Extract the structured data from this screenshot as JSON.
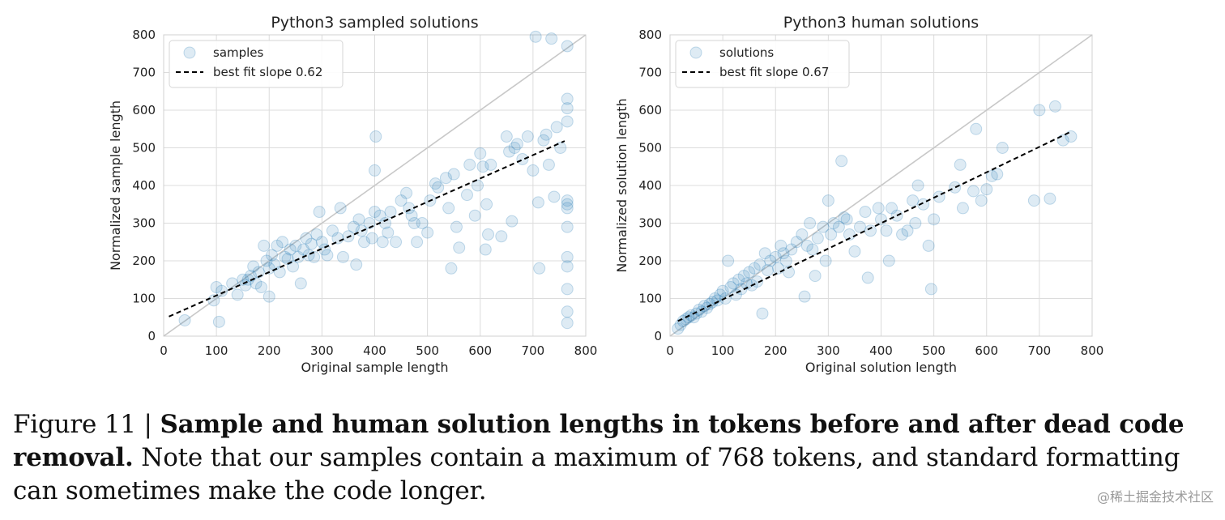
{
  "chart_data": [
    {
      "type": "scatter",
      "title": "Python3 sampled solutions",
      "xlabel": "Original sample length",
      "ylabel": "Normalized sample length",
      "xlim": [
        0,
        800
      ],
      "ylim": [
        0,
        800
      ],
      "xticks": [
        0,
        100,
        200,
        300,
        400,
        500,
        600,
        700,
        800
      ],
      "yticks": [
        0,
        100,
        200,
        300,
        400,
        500,
        600,
        700,
        800
      ],
      "grid": true,
      "legend_position": "top-left",
      "series": [
        {
          "name": "samples",
          "kind": "scatter",
          "color": "#1f77b4",
          "points": [
            [
              40,
              42
            ],
            [
              105,
              38
            ],
            [
              95,
              95
            ],
            [
              100,
              130
            ],
            [
              110,
              120
            ],
            [
              130,
              140
            ],
            [
              140,
              110
            ],
            [
              150,
              150
            ],
            [
              155,
              135
            ],
            [
              160,
              150
            ],
            [
              165,
              160
            ],
            [
              170,
              185
            ],
            [
              175,
              140
            ],
            [
              180,
              170
            ],
            [
              185,
              130
            ],
            [
              190,
              240
            ],
            [
              195,
              200
            ],
            [
              200,
              180
            ],
            [
              200,
              105
            ],
            [
              205,
              215
            ],
            [
              210,
              190
            ],
            [
              215,
              240
            ],
            [
              220,
              170
            ],
            [
              225,
              250
            ],
            [
              230,
              210
            ],
            [
              235,
              205
            ],
            [
              240,
              230
            ],
            [
              245,
              185
            ],
            [
              250,
              240
            ],
            [
              255,
              210
            ],
            [
              260,
              140
            ],
            [
              265,
              230
            ],
            [
              270,
              260
            ],
            [
              275,
              215
            ],
            [
              280,
              245
            ],
            [
              285,
              210
            ],
            [
              290,
              270
            ],
            [
              295,
              330
            ],
            [
              300,
              250
            ],
            [
              305,
              230
            ],
            [
              310,
              215
            ],
            [
              320,
              280
            ],
            [
              330,
              260
            ],
            [
              335,
              340
            ],
            [
              340,
              210
            ],
            [
              350,
              265
            ],
            [
              360,
              290
            ],
            [
              365,
              190
            ],
            [
              370,
              310
            ],
            [
              375,
              280
            ],
            [
              380,
              250
            ],
            [
              390,
              300
            ],
            [
              395,
              260
            ],
            [
              400,
              330
            ],
            [
              400,
              440
            ],
            [
              402,
              530
            ],
            [
              410,
              320
            ],
            [
              415,
              250
            ],
            [
              420,
              300
            ],
            [
              425,
              275
            ],
            [
              430,
              330
            ],
            [
              440,
              250
            ],
            [
              450,
              360
            ],
            [
              460,
              380
            ],
            [
              465,
              340
            ],
            [
              470,
              320
            ],
            [
              475,
              300
            ],
            [
              480,
              250
            ],
            [
              490,
              300
            ],
            [
              500,
              275
            ],
            [
              505,
              360
            ],
            [
              515,
              405
            ],
            [
              520,
              395
            ],
            [
              535,
              420
            ],
            [
              540,
              340
            ],
            [
              545,
              180
            ],
            [
              550,
              430
            ],
            [
              555,
              290
            ],
            [
              560,
              235
            ],
            [
              575,
              375
            ],
            [
              580,
              455
            ],
            [
              590,
              320
            ],
            [
              595,
              400
            ],
            [
              600,
              485
            ],
            [
              605,
              450
            ],
            [
              610,
              230
            ],
            [
              612,
              350
            ],
            [
              615,
              270
            ],
            [
              620,
              455
            ],
            [
              640,
              265
            ],
            [
              650,
              530
            ],
            [
              655,
              490
            ],
            [
              660,
              305
            ],
            [
              665,
              500
            ],
            [
              670,
              510
            ],
            [
              680,
              470
            ],
            [
              690,
              530
            ],
            [
              700,
              440
            ],
            [
              705,
              795
            ],
            [
              710,
              355
            ],
            [
              712,
              180
            ],
            [
              720,
              520
            ],
            [
              725,
              535
            ],
            [
              730,
              455
            ],
            [
              735,
              790
            ],
            [
              740,
              370
            ],
            [
              745,
              555
            ],
            [
              752,
              500
            ],
            [
              765,
              770
            ],
            [
              765,
              630
            ],
            [
              765,
              605
            ],
            [
              765,
              570
            ],
            [
              765,
              360
            ],
            [
              765,
              350
            ],
            [
              765,
              340
            ],
            [
              765,
              290
            ],
            [
              765,
              210
            ],
            [
              765,
              185
            ],
            [
              765,
              125
            ],
            [
              765,
              65
            ],
            [
              765,
              35
            ]
          ]
        },
        {
          "name": "best fit slope 0.62",
          "kind": "line",
          "color": "#000000",
          "style": "dashed",
          "x": [
            10,
            760
          ],
          "y": [
            52,
            518
          ]
        },
        {
          "name": "identity",
          "kind": "reference",
          "color": "#c8c8c8",
          "x": [
            0,
            800
          ],
          "y": [
            0,
            800
          ]
        }
      ]
    },
    {
      "type": "scatter",
      "title": "Python3 human solutions",
      "xlabel": "Original solution length",
      "ylabel": "Normalized solution length",
      "xlim": [
        0,
        800
      ],
      "ylim": [
        0,
        800
      ],
      "xticks": [
        0,
        100,
        200,
        300,
        400,
        500,
        600,
        700,
        800
      ],
      "yticks": [
        0,
        100,
        200,
        300,
        400,
        500,
        600,
        700,
        800
      ],
      "grid": true,
      "legend_position": "top-left",
      "series": [
        {
          "name": "solutions",
          "kind": "scatter",
          "color": "#1f77b4",
          "points": [
            [
              15,
              20
            ],
            [
              20,
              30
            ],
            [
              25,
              40
            ],
            [
              30,
              45
            ],
            [
              35,
              50
            ],
            [
              40,
              55
            ],
            [
              45,
              50
            ],
            [
              50,
              60
            ],
            [
              55,
              70
            ],
            [
              60,
              65
            ],
            [
              65,
              80
            ],
            [
              70,
              75
            ],
            [
              75,
              85
            ],
            [
              80,
              90
            ],
            [
              85,
              100
            ],
            [
              90,
              95
            ],
            [
              95,
              110
            ],
            [
              100,
              120
            ],
            [
              105,
              100
            ],
            [
              110,
              200
            ],
            [
              115,
              130
            ],
            [
              120,
              140
            ],
            [
              125,
              110
            ],
            [
              130,
              150
            ],
            [
              135,
              125
            ],
            [
              140,
              160
            ],
            [
              145,
              140
            ],
            [
              150,
              170
            ],
            [
              155,
              135
            ],
            [
              160,
              180
            ],
            [
              165,
              145
            ],
            [
              170,
              190
            ],
            [
              175,
              60
            ],
            [
              180,
              220
            ],
            [
              185,
              175
            ],
            [
              190,
              200
            ],
            [
              200,
              210
            ],
            [
              205,
              180
            ],
            [
              210,
              240
            ],
            [
              215,
              220
            ],
            [
              220,
              200
            ],
            [
              225,
              170
            ],
            [
              230,
              230
            ],
            [
              240,
              250
            ],
            [
              250,
              270
            ],
            [
              255,
              105
            ],
            [
              260,
              240
            ],
            [
              265,
              300
            ],
            [
              270,
              230
            ],
            [
              275,
              160
            ],
            [
              280,
              260
            ],
            [
              290,
              290
            ],
            [
              295,
              200
            ],
            [
              300,
              360
            ],
            [
              305,
              270
            ],
            [
              310,
              300
            ],
            [
              320,
              290
            ],
            [
              325,
              465
            ],
            [
              330,
              315
            ],
            [
              335,
              310
            ],
            [
              340,
              270
            ],
            [
              350,
              225
            ],
            [
              360,
              290
            ],
            [
              370,
              330
            ],
            [
              375,
              155
            ],
            [
              380,
              280
            ],
            [
              395,
              340
            ],
            [
              400,
              310
            ],
            [
              410,
              280
            ],
            [
              415,
              200
            ],
            [
              420,
              340
            ],
            [
              430,
              320
            ],
            [
              440,
              270
            ],
            [
              450,
              280
            ],
            [
              460,
              360
            ],
            [
              465,
              300
            ],
            [
              470,
              400
            ],
            [
              480,
              350
            ],
            [
              490,
              240
            ],
            [
              495,
              125
            ],
            [
              500,
              310
            ],
            [
              510,
              370
            ],
            [
              540,
              395
            ],
            [
              550,
              455
            ],
            [
              555,
              340
            ],
            [
              575,
              385
            ],
            [
              580,
              550
            ],
            [
              590,
              360
            ],
            [
              600,
              390
            ],
            [
              610,
              425
            ],
            [
              620,
              430
            ],
            [
              630,
              500
            ],
            [
              690,
              360
            ],
            [
              700,
              600
            ],
            [
              720,
              365
            ],
            [
              730,
              610
            ],
            [
              745,
              520
            ],
            [
              760,
              530
            ]
          ]
        },
        {
          "name": "best fit slope 0.67",
          "kind": "line",
          "color": "#000000",
          "style": "dashed",
          "x": [
            15,
            760
          ],
          "y": [
            40,
            543
          ]
        },
        {
          "name": "identity",
          "kind": "reference",
          "color": "#c8c8c8",
          "x": [
            0,
            800
          ],
          "y": [
            0,
            800
          ]
        }
      ]
    }
  ],
  "caption": {
    "label": "Figure 11 |",
    "title": "Sample and human solution lengths in tokens before and after dead code removal.",
    "body": "Note that our samples contain a maximum of 768 tokens, and standard formatting can sometimes make the code longer."
  },
  "watermark": "@稀土掘金技术社区"
}
